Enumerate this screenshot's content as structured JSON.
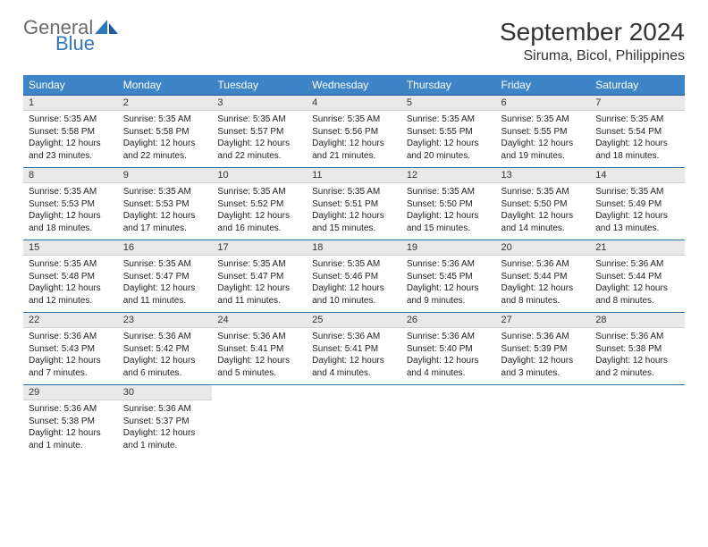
{
  "logo": {
    "general": "General",
    "blue": "Blue",
    "brand_color": "#2f78b7",
    "gray": "#6b6b6b"
  },
  "header": {
    "month": "September 2024",
    "location": "Siruma, Bicol, Philippines"
  },
  "weekdays": [
    "Sunday",
    "Monday",
    "Tuesday",
    "Wednesday",
    "Thursday",
    "Friday",
    "Saturday"
  ],
  "colors": {
    "header_bg": "#3d85c6",
    "header_text": "#ffffff",
    "daynum_bg": "#e9e9e9",
    "row_border": "#2f6fa8",
    "text": "#222222"
  },
  "weeks": [
    [
      {
        "n": "1",
        "sr": "Sunrise: 5:35 AM",
        "ss": "Sunset: 5:58 PM",
        "d1": "Daylight: 12 hours",
        "d2": "and 23 minutes."
      },
      {
        "n": "2",
        "sr": "Sunrise: 5:35 AM",
        "ss": "Sunset: 5:58 PM",
        "d1": "Daylight: 12 hours",
        "d2": "and 22 minutes."
      },
      {
        "n": "3",
        "sr": "Sunrise: 5:35 AM",
        "ss": "Sunset: 5:57 PM",
        "d1": "Daylight: 12 hours",
        "d2": "and 22 minutes."
      },
      {
        "n": "4",
        "sr": "Sunrise: 5:35 AM",
        "ss": "Sunset: 5:56 PM",
        "d1": "Daylight: 12 hours",
        "d2": "and 21 minutes."
      },
      {
        "n": "5",
        "sr": "Sunrise: 5:35 AM",
        "ss": "Sunset: 5:55 PM",
        "d1": "Daylight: 12 hours",
        "d2": "and 20 minutes."
      },
      {
        "n": "6",
        "sr": "Sunrise: 5:35 AM",
        "ss": "Sunset: 5:55 PM",
        "d1": "Daylight: 12 hours",
        "d2": "and 19 minutes."
      },
      {
        "n": "7",
        "sr": "Sunrise: 5:35 AM",
        "ss": "Sunset: 5:54 PM",
        "d1": "Daylight: 12 hours",
        "d2": "and 18 minutes."
      }
    ],
    [
      {
        "n": "8",
        "sr": "Sunrise: 5:35 AM",
        "ss": "Sunset: 5:53 PM",
        "d1": "Daylight: 12 hours",
        "d2": "and 18 minutes."
      },
      {
        "n": "9",
        "sr": "Sunrise: 5:35 AM",
        "ss": "Sunset: 5:53 PM",
        "d1": "Daylight: 12 hours",
        "d2": "and 17 minutes."
      },
      {
        "n": "10",
        "sr": "Sunrise: 5:35 AM",
        "ss": "Sunset: 5:52 PM",
        "d1": "Daylight: 12 hours",
        "d2": "and 16 minutes."
      },
      {
        "n": "11",
        "sr": "Sunrise: 5:35 AM",
        "ss": "Sunset: 5:51 PM",
        "d1": "Daylight: 12 hours",
        "d2": "and 15 minutes."
      },
      {
        "n": "12",
        "sr": "Sunrise: 5:35 AM",
        "ss": "Sunset: 5:50 PM",
        "d1": "Daylight: 12 hours",
        "d2": "and 15 minutes."
      },
      {
        "n": "13",
        "sr": "Sunrise: 5:35 AM",
        "ss": "Sunset: 5:50 PM",
        "d1": "Daylight: 12 hours",
        "d2": "and 14 minutes."
      },
      {
        "n": "14",
        "sr": "Sunrise: 5:35 AM",
        "ss": "Sunset: 5:49 PM",
        "d1": "Daylight: 12 hours",
        "d2": "and 13 minutes."
      }
    ],
    [
      {
        "n": "15",
        "sr": "Sunrise: 5:35 AM",
        "ss": "Sunset: 5:48 PM",
        "d1": "Daylight: 12 hours",
        "d2": "and 12 minutes."
      },
      {
        "n": "16",
        "sr": "Sunrise: 5:35 AM",
        "ss": "Sunset: 5:47 PM",
        "d1": "Daylight: 12 hours",
        "d2": "and 11 minutes."
      },
      {
        "n": "17",
        "sr": "Sunrise: 5:35 AM",
        "ss": "Sunset: 5:47 PM",
        "d1": "Daylight: 12 hours",
        "d2": "and 11 minutes."
      },
      {
        "n": "18",
        "sr": "Sunrise: 5:35 AM",
        "ss": "Sunset: 5:46 PM",
        "d1": "Daylight: 12 hours",
        "d2": "and 10 minutes."
      },
      {
        "n": "19",
        "sr": "Sunrise: 5:36 AM",
        "ss": "Sunset: 5:45 PM",
        "d1": "Daylight: 12 hours",
        "d2": "and 9 minutes."
      },
      {
        "n": "20",
        "sr": "Sunrise: 5:36 AM",
        "ss": "Sunset: 5:44 PM",
        "d1": "Daylight: 12 hours",
        "d2": "and 8 minutes."
      },
      {
        "n": "21",
        "sr": "Sunrise: 5:36 AM",
        "ss": "Sunset: 5:44 PM",
        "d1": "Daylight: 12 hours",
        "d2": "and 8 minutes."
      }
    ],
    [
      {
        "n": "22",
        "sr": "Sunrise: 5:36 AM",
        "ss": "Sunset: 5:43 PM",
        "d1": "Daylight: 12 hours",
        "d2": "and 7 minutes."
      },
      {
        "n": "23",
        "sr": "Sunrise: 5:36 AM",
        "ss": "Sunset: 5:42 PM",
        "d1": "Daylight: 12 hours",
        "d2": "and 6 minutes."
      },
      {
        "n": "24",
        "sr": "Sunrise: 5:36 AM",
        "ss": "Sunset: 5:41 PM",
        "d1": "Daylight: 12 hours",
        "d2": "and 5 minutes."
      },
      {
        "n": "25",
        "sr": "Sunrise: 5:36 AM",
        "ss": "Sunset: 5:41 PM",
        "d1": "Daylight: 12 hours",
        "d2": "and 4 minutes."
      },
      {
        "n": "26",
        "sr": "Sunrise: 5:36 AM",
        "ss": "Sunset: 5:40 PM",
        "d1": "Daylight: 12 hours",
        "d2": "and 4 minutes."
      },
      {
        "n": "27",
        "sr": "Sunrise: 5:36 AM",
        "ss": "Sunset: 5:39 PM",
        "d1": "Daylight: 12 hours",
        "d2": "and 3 minutes."
      },
      {
        "n": "28",
        "sr": "Sunrise: 5:36 AM",
        "ss": "Sunset: 5:38 PM",
        "d1": "Daylight: 12 hours",
        "d2": "and 2 minutes."
      }
    ],
    [
      {
        "n": "29",
        "sr": "Sunrise: 5:36 AM",
        "ss": "Sunset: 5:38 PM",
        "d1": "Daylight: 12 hours",
        "d2": "and 1 minute."
      },
      {
        "n": "30",
        "sr": "Sunrise: 5:36 AM",
        "ss": "Sunset: 5:37 PM",
        "d1": "Daylight: 12 hours",
        "d2": "and 1 minute."
      },
      {
        "empty": true
      },
      {
        "empty": true
      },
      {
        "empty": true
      },
      {
        "empty": true
      },
      {
        "empty": true
      }
    ]
  ]
}
